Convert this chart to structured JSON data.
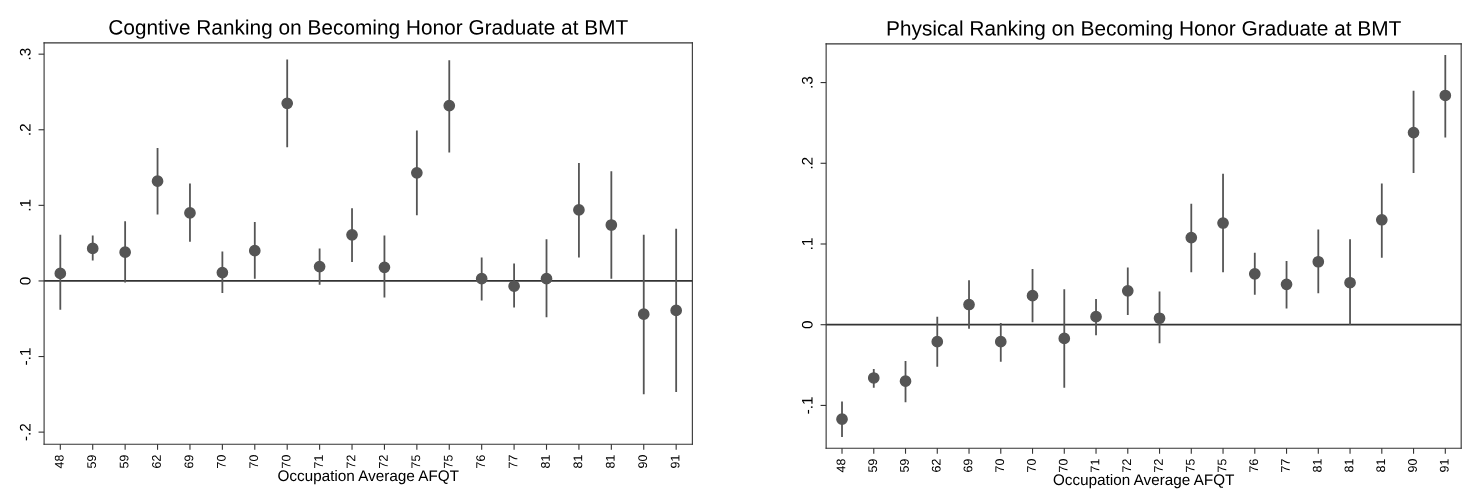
{
  "chart_data": [
    {
      "type": "scatter",
      "title": "Cogntive Ranking on Becoming Honor Graduate at BMT",
      "xlabel": "Occupation Average AFQT",
      "categories": [
        "48",
        "59",
        "59",
        "62",
        "69",
        "70",
        "70",
        "70",
        "71",
        "72",
        "72",
        "75",
        "75",
        "76",
        "77",
        "81",
        "81",
        "81",
        "90",
        "91"
      ],
      "series": [
        {
          "color": "#555555",
          "values": [
            0.01,
            0.043,
            0.038,
            0.132,
            0.09,
            0.011,
            0.04,
            0.235,
            0.019,
            0.061,
            0.018,
            0.143,
            0.232,
            0.003,
            -0.007,
            0.003,
            0.094,
            0.074,
            -0.044,
            -0.039
          ],
          "errors": [
            [
              -0.038,
              0.061
            ],
            [
              0.027,
              0.06
            ],
            [
              -0.002,
              0.079
            ],
            [
              0.088,
              0.176
            ],
            [
              0.052,
              0.129
            ],
            [
              -0.016,
              0.039
            ],
            [
              0.003,
              0.078
            ],
            [
              0.177,
              0.293
            ],
            [
              -0.005,
              0.043
            ],
            [
              0.025,
              0.096
            ],
            [
              -0.022,
              0.06
            ],
            [
              0.087,
              0.199
            ],
            [
              0.17,
              0.292
            ],
            [
              -0.026,
              0.031
            ],
            [
              -0.035,
              0.023
            ],
            [
              -0.048,
              0.055
            ],
            [
              0.031,
              0.156
            ],
            [
              0.003,
              0.145
            ],
            [
              -0.15,
              0.061
            ],
            [
              -0.147,
              0.069
            ]
          ]
        }
      ],
      "marker": "circle",
      "grid": false,
      "ylim": [
        -0.216,
        0.315
      ],
      "yticks": [
        {
          "value": -0.2,
          "label": "-.2"
        },
        {
          "value": -0.1,
          "label": "-.1"
        },
        0,
        {
          "value": 0.1,
          "label": ".1"
        },
        {
          "value": 0.2,
          "label": ".2"
        },
        {
          "value": 0.3,
          "label": ".3"
        }
      ],
      "ref_lines": [
        {
          "axis": "y",
          "value": 0,
          "color": "#333333"
        }
      ]
    },
    {
      "type": "scatter",
      "title": "Physical Ranking on Becoming Honor Graduate at BMT",
      "xlabel": "Occupation Average AFQT",
      "categories": [
        "48",
        "59",
        "59",
        "62",
        "69",
        "70",
        "70",
        "70",
        "71",
        "72",
        "72",
        "75",
        "75",
        "76",
        "77",
        "81",
        "81",
        "81",
        "90",
        "91"
      ],
      "series": [
        {
          "color": "#555555",
          "values": [
            -0.117,
            -0.066,
            -0.07,
            -0.021,
            0.025,
            -0.021,
            0.036,
            -0.017,
            0.01,
            0.042,
            0.008,
            0.108,
            0.126,
            0.063,
            0.05,
            0.078,
            0.052,
            0.13,
            0.238,
            0.284
          ],
          "errors": [
            [
              -0.139,
              -0.095
            ],
            [
              -0.078,
              -0.055
            ],
            [
              -0.096,
              -0.045
            ],
            [
              -0.052,
              0.01
            ],
            [
              -0.005,
              0.055
            ],
            [
              -0.046,
              0.002
            ],
            [
              0.003,
              0.069
            ],
            [
              -0.078,
              0.044
            ],
            [
              -0.013,
              0.032
            ],
            [
              0.012,
              0.071
            ],
            [
              -0.023,
              0.041
            ],
            [
              0.065,
              0.15
            ],
            [
              0.065,
              0.187
            ],
            [
              0.037,
              0.089
            ],
            [
              0.02,
              0.079
            ],
            [
              0.039,
              0.118
            ],
            [
              0.0,
              0.106
            ],
            [
              0.083,
              0.175
            ],
            [
              0.188,
              0.29
            ],
            [
              0.232,
              0.334
            ]
          ]
        }
      ],
      "marker": "circle",
      "grid": false,
      "ylim": [
        -0.153,
        0.348
      ],
      "yticks": [
        {
          "value": -0.1,
          "label": "-.1"
        },
        0,
        {
          "value": 0.1,
          "label": ".1"
        },
        {
          "value": 0.2,
          "label": ".2"
        },
        {
          "value": 0.3,
          "label": ".3"
        }
      ],
      "ref_lines": [
        {
          "axis": "y",
          "value": 0,
          "color": "#333333"
        }
      ]
    }
  ]
}
